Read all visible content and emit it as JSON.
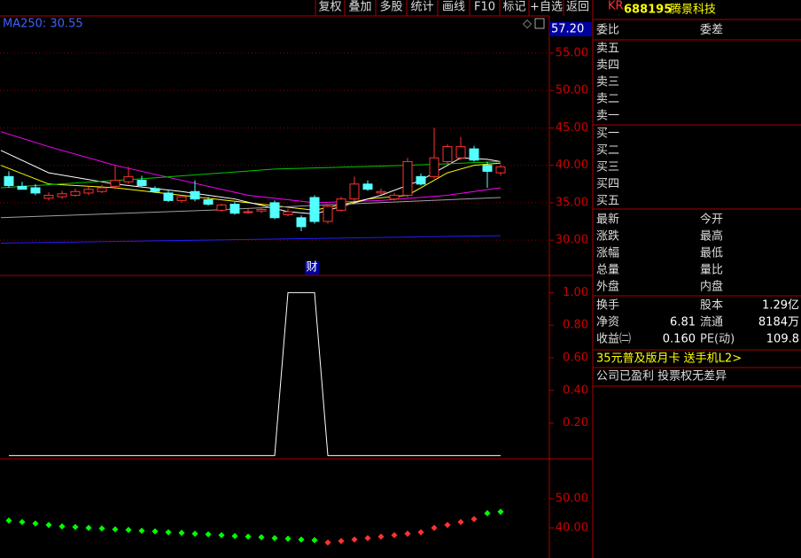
{
  "toolbar": [
    "复权",
    "叠加",
    "多股",
    "统计",
    "画线",
    "F10",
    "标记",
    "+自选",
    "返回"
  ],
  "stock": {
    "market": "KR",
    "code": "688195",
    "name": "腾景科技"
  },
  "side": {
    "commission": [
      "委比",
      "委差"
    ],
    "asks": [
      "卖五",
      "卖四",
      "卖三",
      "卖二",
      "卖一"
    ],
    "bids": [
      "买一",
      "买二",
      "买三",
      "买四",
      "买五"
    ],
    "quote": [
      [
        "最新",
        "今开"
      ],
      [
        "涨跌",
        "最高"
      ],
      [
        "涨幅",
        "最低"
      ],
      [
        "总量",
        "量比"
      ],
      [
        "外盘",
        "内盘"
      ]
    ],
    "finance": [
      {
        "label": "换手",
        "label2": "股本",
        "value2": "1.29亿"
      },
      {
        "label": "净资",
        "value": "6.81",
        "label2": "流通",
        "value2": "8184万"
      },
      {
        "label": "收益㈡",
        "value": "0.160",
        "label2": "PE(动)",
        "value2": "109.8"
      }
    ],
    "promo": "35元普及版月卡 送手机L2>",
    "note": "公司已盈利 投票权无差异"
  },
  "main_chart": {
    "type": "candlestick",
    "ma_label": "MA250: 30.55",
    "price_marker": "57.20",
    "event": "财",
    "ylim": [
      25.4,
      62.1
    ],
    "yticks": [
      {
        "value": 55,
        "label": "55.00"
      },
      {
        "value": 50,
        "label": "50.00"
      },
      {
        "value": 45,
        "label": "45.00"
      },
      {
        "value": 40,
        "label": "40.00"
      },
      {
        "value": 35,
        "label": "35.00"
      },
      {
        "value": 30,
        "label": "30.00"
      }
    ],
    "open": [
      38.5,
      37.2,
      37.0,
      35.6,
      35.8,
      36.0,
      36.3,
      36.5,
      37.2,
      37.8,
      38.0,
      36.9,
      36.3,
      35.3,
      36.5,
      35.4,
      34.0,
      34.8,
      33.7,
      33.9,
      35.0,
      33.4,
      33.0,
      35.7,
      32.5,
      34.0,
      35.5,
      37.5,
      36.3,
      35.5,
      36.0,
      38.5,
      38.5,
      40.5,
      41.0,
      42.2,
      40.0,
      39.0
    ],
    "high": [
      39.2,
      37.8,
      37.5,
      36.4,
      36.6,
      36.9,
      37.2,
      37.4,
      40.0,
      39.8,
      38.6,
      37.2,
      36.6,
      36.0,
      38.0,
      35.8,
      34.9,
      35.1,
      34.2,
      34.4,
      35.3,
      34.2,
      33.3,
      36.0,
      34.8,
      35.8,
      38.5,
      38.0,
      36.9,
      36.3,
      41.0,
      38.9,
      45.0,
      42.8,
      43.8,
      42.6,
      40.5,
      40.1
    ],
    "low": [
      37.0,
      36.8,
      36.0,
      35.3,
      35.5,
      35.8,
      36.0,
      36.3,
      36.8,
      37.5,
      37.1,
      36.3,
      35.1,
      35.0,
      35.2,
      34.6,
      33.8,
      33.4,
      33.5,
      33.6,
      32.8,
      33.2,
      31.2,
      32.2,
      32.2,
      33.8,
      35.2,
      36.6,
      36.1,
      35.3,
      35.7,
      37.3,
      38.2,
      40.2,
      40.7,
      40.5,
      37.0,
      38.6
    ],
    "close": [
      37.3,
      36.8,
      36.3,
      36.0,
      36.2,
      36.5,
      36.8,
      37.0,
      38.0,
      38.5,
      37.3,
      36.5,
      35.3,
      35.8,
      35.5,
      34.8,
      34.7,
      33.6,
      33.8,
      34.1,
      33.0,
      33.8,
      31.8,
      32.5,
      34.5,
      35.5,
      37.5,
      36.8,
      36.5,
      36.0,
      40.5,
      37.5,
      41.0,
      42.5,
      42.5,
      40.7,
      39.2,
      39.8
    ],
    "lines": [
      {
        "color": "#ff00ff",
        "x": [
          -0.6,
          3,
          8,
          13,
          18,
          23,
          28,
          33,
          37
        ],
        "values": [
          44.5,
          42.5,
          40,
          38,
          36,
          35,
          35.3,
          36,
          37
        ]
      },
      {
        "color": "#ffff00",
        "x": [
          -0.6,
          3,
          8,
          13,
          18,
          23,
          27,
          30,
          33,
          35,
          37
        ],
        "values": [
          40,
          37.5,
          37,
          36,
          35,
          34,
          35.5,
          36,
          39,
          40,
          40.3
        ]
      },
      {
        "color": "#ffffff",
        "x": [
          -0.6,
          3,
          8,
          13,
          17,
          21,
          23,
          25,
          28,
          31,
          34,
          36,
          37
        ],
        "values": [
          42,
          39,
          37.5,
          36.5,
          35.5,
          33.8,
          33.5,
          34.5,
          36,
          38,
          41,
          40.8,
          40.5
        ]
      },
      {
        "color": "#00c800",
        "x": [
          -0.6,
          10,
          20,
          30,
          37
        ],
        "values": [
          37,
          38.2,
          39.5,
          40,
          40.5
        ]
      },
      {
        "color": "#a0a0a0",
        "x": [
          -0.6,
          15,
          25,
          37
        ],
        "values": [
          33,
          34,
          34.8,
          35.7
        ]
      },
      {
        "color": "#2020ff",
        "x": [
          -0.6,
          37
        ],
        "values": [
          29.6,
          30.6
        ]
      }
    ]
  },
  "indicator": {
    "type": "line",
    "color": "#ffffff",
    "ylim": [
      -0.02,
      1.1
    ],
    "yticks": [
      {
        "value": 1,
        "label": "1.00"
      },
      {
        "value": 0.8,
        "label": "0.80"
      },
      {
        "value": 0.6,
        "label": "0.60"
      },
      {
        "value": 0.4,
        "label": "0.40"
      },
      {
        "value": 0.2,
        "label": "0.20"
      }
    ],
    "values": [
      0,
      0,
      0,
      0,
      0,
      0,
      0,
      0,
      0,
      0,
      0,
      0,
      0,
      0,
      0,
      0,
      0,
      0,
      0,
      0,
      0,
      1,
      1,
      1,
      0,
      0,
      0,
      0,
      0,
      0,
      0,
      0,
      0,
      0,
      0,
      0,
      0,
      0
    ]
  },
  "lower": {
    "type": "scatter",
    "ylim": [
      29.7,
      63.6
    ],
    "yticks": [
      {
        "value": 50,
        "label": "50.00"
      },
      {
        "value": 40,
        "label": "40.00"
      }
    ],
    "series": [
      {
        "color": "#00ff00",
        "x": [
          0,
          1,
          2,
          3,
          4,
          5,
          6,
          7,
          8,
          9,
          10,
          11,
          12,
          13,
          14,
          15,
          16,
          17,
          18,
          19,
          20,
          21,
          22,
          23,
          36,
          37
        ],
        "values": [
          42.5,
          42,
          41.5,
          41,
          40.5,
          40.3,
          40,
          39.8,
          39.5,
          39.3,
          39,
          38.8,
          38.5,
          38.3,
          38,
          37.8,
          37.5,
          37.2,
          37,
          36.8,
          36.5,
          36.3,
          36,
          35.8,
          45,
          45.5
        ]
      },
      {
        "color": "#ff3232",
        "x": [
          24,
          25,
          26,
          27,
          28,
          29,
          30,
          31,
          32,
          33,
          34,
          35
        ],
        "values": [
          35,
          35.5,
          36,
          36.5,
          37,
          37.5,
          38,
          38.5,
          40,
          41,
          42,
          43
        ]
      }
    ]
  }
}
